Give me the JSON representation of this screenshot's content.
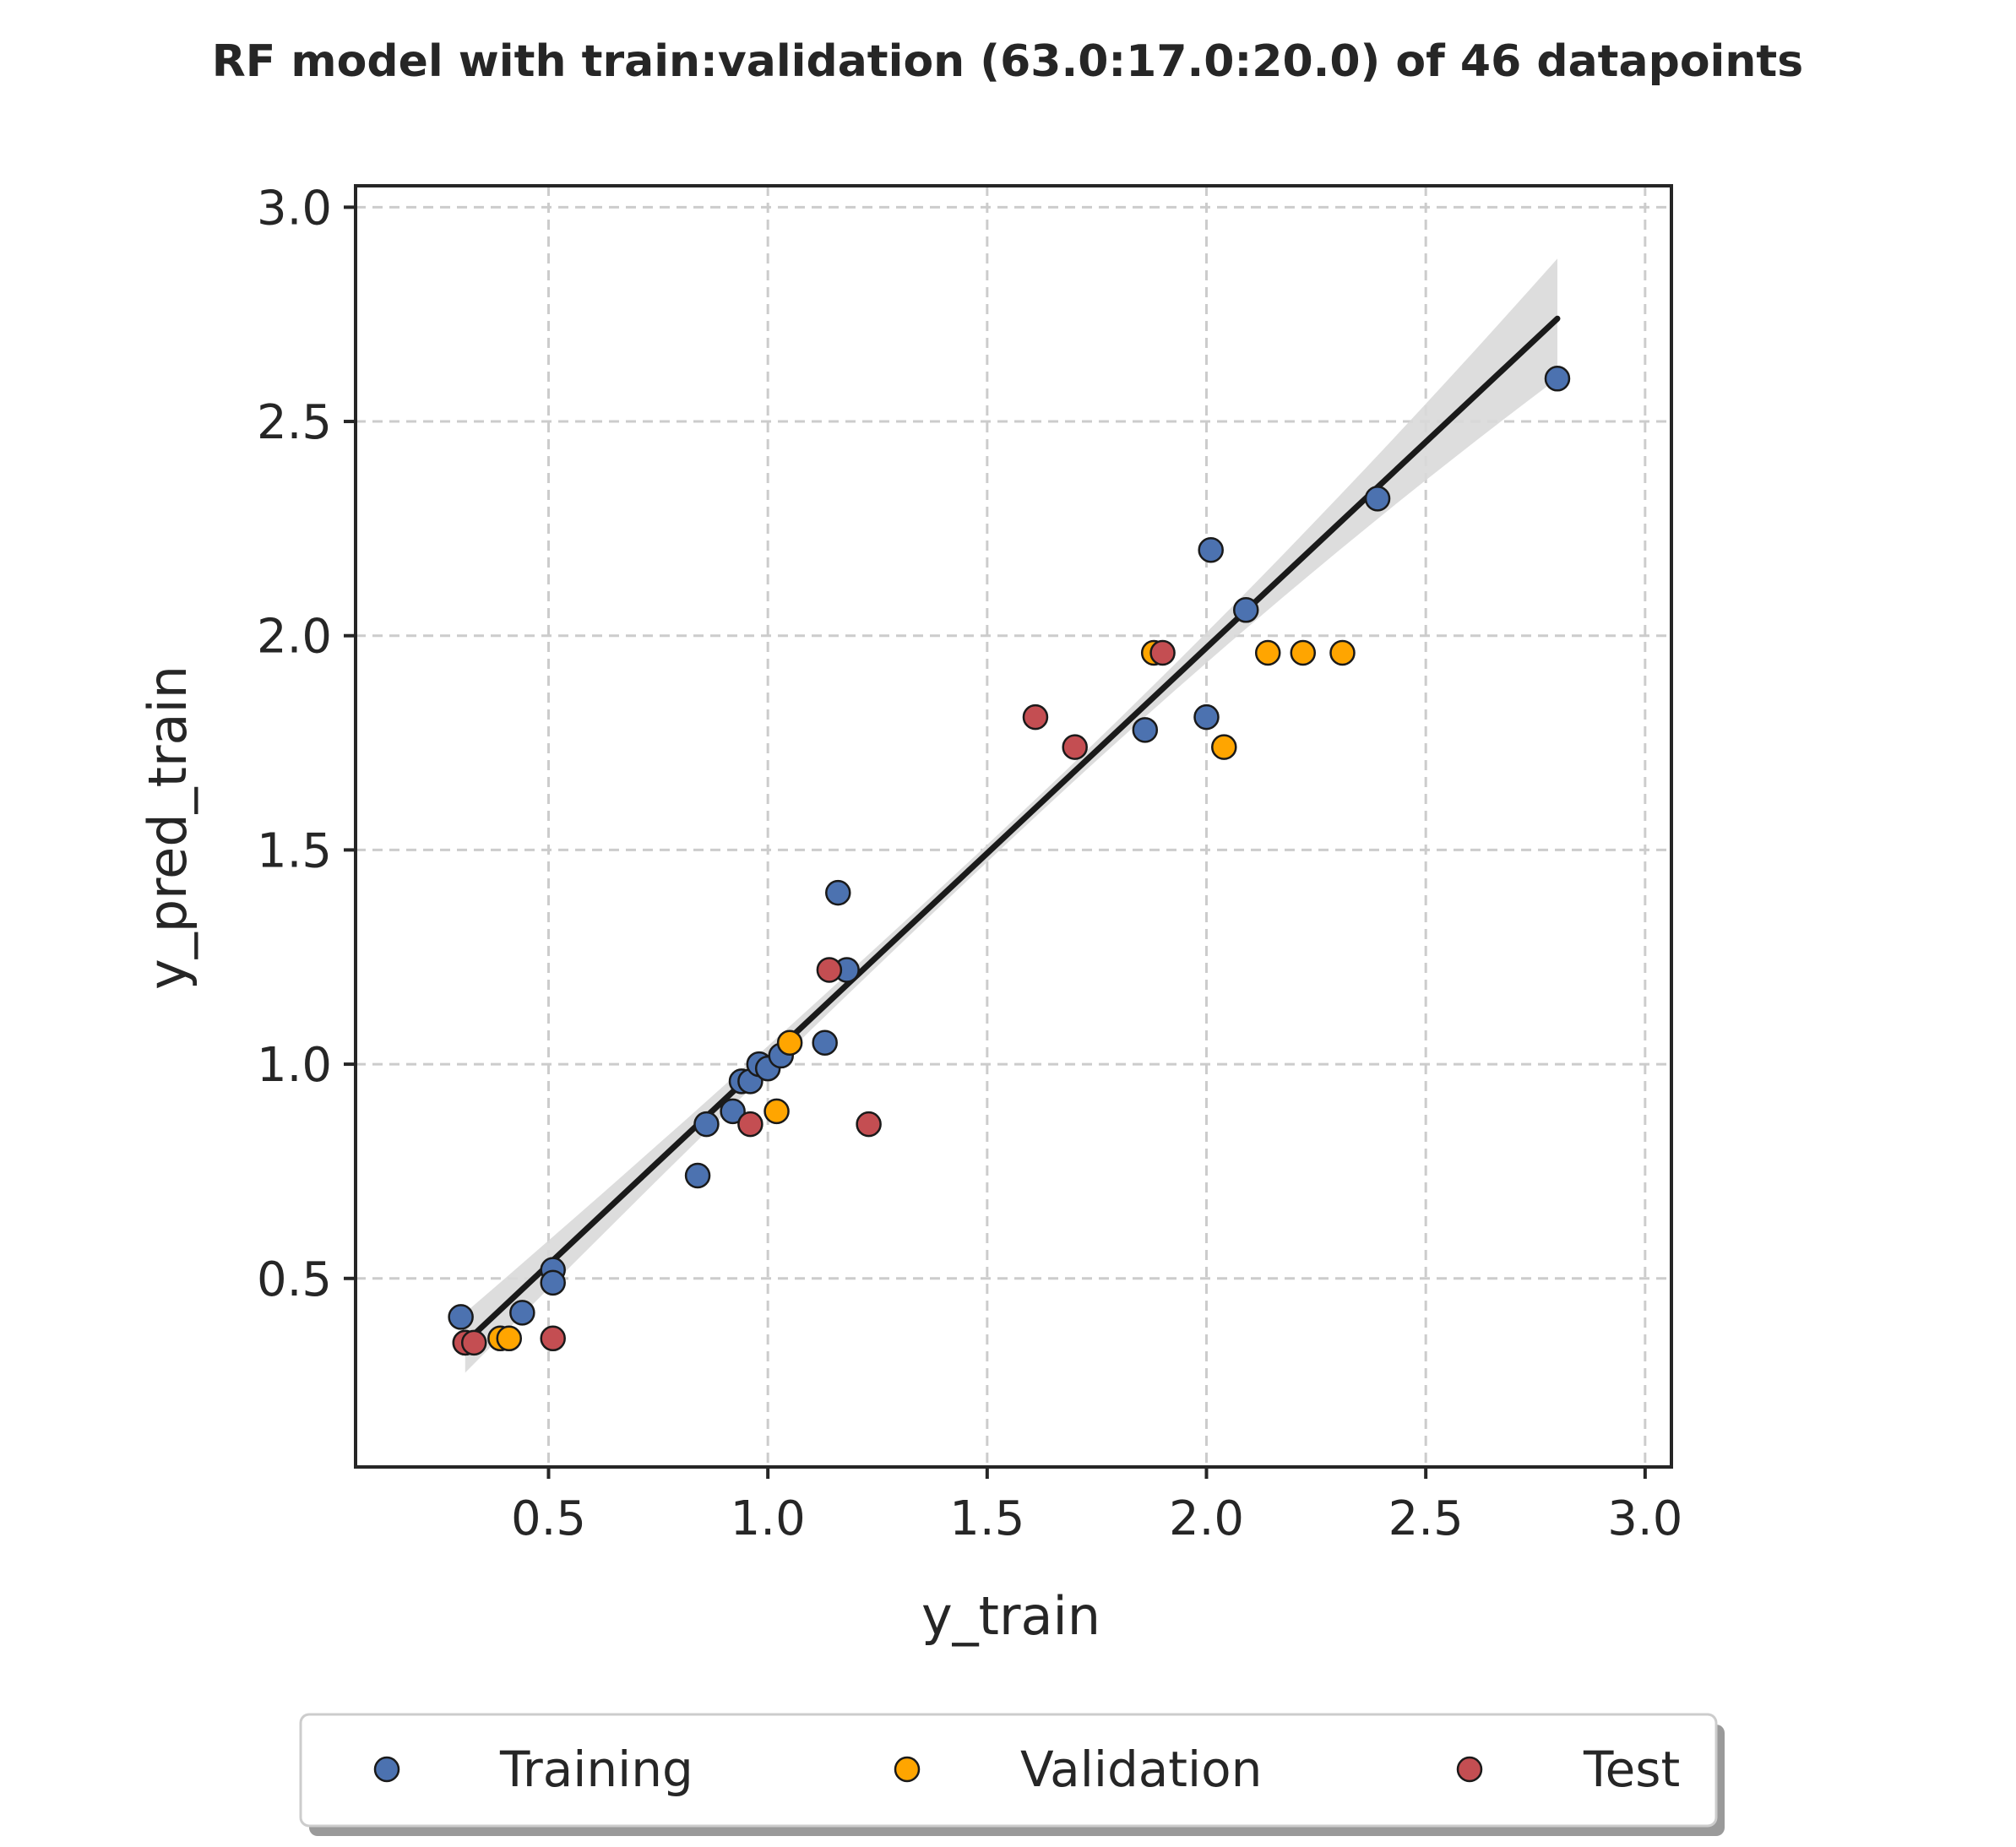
{
  "chart_data": {
    "type": "scatter",
    "title": "RF model with train:validation (63.0:17.0:20.0) of 46 datapoints",
    "xlabel": "y_train",
    "ylabel": "y_pred_train",
    "xlim": [
      0.06,
      3.06
    ],
    "ylim": [
      0.06,
      3.05
    ],
    "xticks": [
      0.5,
      1.0,
      1.5,
      2.0,
      2.5,
      3.0
    ],
    "yticks": [
      0.5,
      1.0,
      1.5,
      2.0,
      2.5,
      3.0
    ],
    "xtick_labels": [
      "0.5",
      "1.0",
      "1.5",
      "2.0",
      "2.5",
      "3.0"
    ],
    "ytick_labels": [
      "0.5",
      "1.0",
      "1.5",
      "2.0",
      "2.5",
      "3.0"
    ],
    "grid": true,
    "legend_position": "bottom-center",
    "series": [
      {
        "name": "Training",
        "color": "#4c72b0",
        "points": [
          [
            0.3,
            0.41
          ],
          [
            0.31,
            0.35
          ],
          [
            0.44,
            0.42
          ],
          [
            0.51,
            0.52
          ],
          [
            0.51,
            0.49
          ],
          [
            0.84,
            0.74
          ],
          [
            0.86,
            0.86
          ],
          [
            0.92,
            0.89
          ],
          [
            0.94,
            0.96
          ],
          [
            0.96,
            0.96
          ],
          [
            0.98,
            1.0
          ],
          [
            1.0,
            0.99
          ],
          [
            1.03,
            1.02
          ],
          [
            1.13,
            1.05
          ],
          [
            1.16,
            1.4
          ],
          [
            1.18,
            1.22
          ],
          [
            1.86,
            1.78
          ],
          [
            2.0,
            1.81
          ],
          [
            2.01,
            2.2
          ],
          [
            2.09,
            2.06
          ],
          [
            2.39,
            2.32
          ],
          [
            2.8,
            2.6
          ]
        ]
      },
      {
        "name": "Validation",
        "color": "#ffa500",
        "points": [
          [
            0.39,
            0.36
          ],
          [
            0.41,
            0.36
          ],
          [
            1.02,
            0.89
          ],
          [
            1.05,
            1.05
          ],
          [
            1.88,
            1.96
          ],
          [
            2.04,
            1.74
          ],
          [
            2.14,
            1.96
          ],
          [
            2.22,
            1.96
          ],
          [
            2.31,
            1.96
          ]
        ]
      },
      {
        "name": "Test",
        "color": "#c44e52",
        "points": [
          [
            0.31,
            0.35
          ],
          [
            0.33,
            0.35
          ],
          [
            0.51,
            0.36
          ],
          [
            0.96,
            0.86
          ],
          [
            1.14,
            1.22
          ],
          [
            1.23,
            0.86
          ],
          [
            1.61,
            1.81
          ],
          [
            1.7,
            1.74
          ],
          [
            1.9,
            1.96
          ]
        ]
      }
    ],
    "regression": {
      "color": "#1a1a1a",
      "x_range": [
        0.31,
        2.8
      ],
      "y_range": [
        0.35,
        2.74
      ],
      "band_color": "#d9d9d9",
      "band_half_width_ends": [
        0.07,
        0.14
      ],
      "band_half_width_center": 0.02
    }
  }
}
